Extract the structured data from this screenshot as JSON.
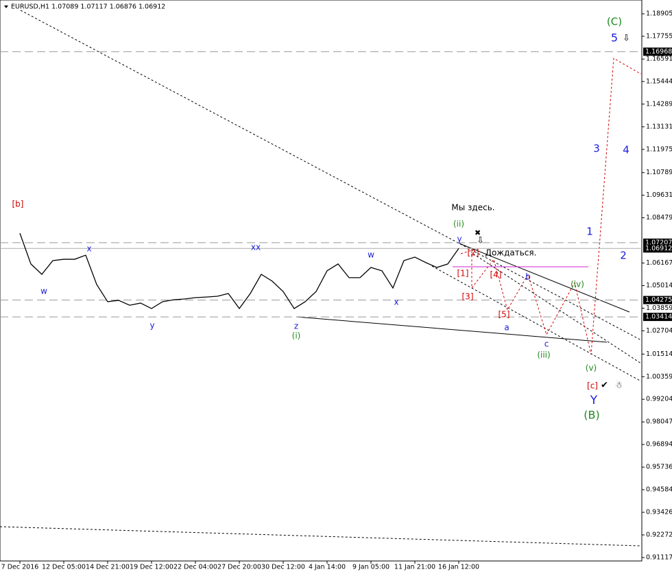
{
  "chart_data": {
    "type": "line",
    "title": "EURUSD,H1  1.07089 1.07117 1.06876 1.06912",
    "categories": [
      "7 Dec 2016",
      null,
      null,
      null,
      "12 Dec 05:00",
      null,
      null,
      null,
      "14 Dec 21:00",
      null,
      null,
      null,
      "19 Dec 12:00",
      null,
      null,
      null,
      "22 Dec 04:00",
      null,
      null,
      null,
      "27 Dec 20:00",
      null,
      null,
      null,
      "30 Dec 12:00",
      null,
      null,
      null,
      "4 Jan 14:00",
      null,
      null,
      null,
      "9 Jan 05:00",
      null,
      null,
      null,
      "11 Jan 21:00",
      null,
      null,
      null,
      "16 Jan 12:00"
    ],
    "series": [
      {
        "name": "EURUSD",
        "color": "#000000",
        "values": [
          1.0769,
          1.0612,
          1.0559,
          1.0629,
          1.0636,
          1.0636,
          1.0657,
          1.0507,
          1.0419,
          1.0426,
          1.0401,
          1.0412,
          1.0384,
          1.0419,
          1.0429,
          1.0433,
          1.044,
          1.0443,
          1.0447,
          1.0461,
          1.0384,
          1.0461,
          1.0559,
          1.0524,
          1.0471,
          1.0384,
          1.0419,
          1.0471,
          1.0577,
          1.0612,
          1.0542,
          1.0542,
          1.0594,
          1.0577,
          1.0489,
          1.0629,
          1.0647,
          1.0619,
          1.0594,
          1.0612,
          1.06912
        ]
      }
    ],
    "ylim": [
      0.9094,
      1.1961
    ],
    "yticks": [
      1.18905,
      1.17755,
      1.16591,
      1.15444,
      1.14289,
      1.13131,
      1.11975,
      1.10789,
      1.09631,
      1.08479,
      1.06167,
      1.05014,
      1.03859,
      1.02704,
      1.01514,
      1.00359,
      0.99204,
      0.98047,
      0.96894,
      0.95736,
      0.94584,
      0.93426,
      0.92272,
      0.91117
    ],
    "levels": [
      1.16968,
      1.07207,
      1.04275,
      1.03414
    ],
    "last_price": 1.06912,
    "annotations": [
      {
        "text": "[b]",
        "color": "#d00000"
      },
      {
        "text": "x",
        "color": "#1a1adc"
      },
      {
        "text": "w",
        "color": "#1a1adc"
      },
      {
        "text": "y",
        "color": "#1a1adc"
      },
      {
        "text": "xx",
        "color": "#1a1adc"
      },
      {
        "text": "z",
        "color": "#1a1adc"
      },
      {
        "text": "(i)",
        "color": "#1f8a1f"
      },
      {
        "text": "w",
        "color": "#1a1adc"
      },
      {
        "text": "x",
        "color": "#1a1adc"
      },
      {
        "text": "y",
        "color": "#1a1adc"
      },
      {
        "text": "(ii)",
        "color": "#1f8a1f"
      },
      {
        "text": "Мы здесь.",
        "color": "#000000"
      },
      {
        "text": "Дождаться.",
        "color": "#000000"
      },
      {
        "text": "[2]",
        "color": "#d00000"
      },
      {
        "text": "[1]",
        "color": "#d00000"
      },
      {
        "text": "[3]",
        "color": "#d00000"
      },
      {
        "text": "[4]",
        "color": "#d00000"
      },
      {
        "text": "[5]",
        "color": "#d00000"
      },
      {
        "text": "b",
        "color": "#1a1adc"
      },
      {
        "text": "a",
        "color": "#1a1adc"
      },
      {
        "text": "c",
        "color": "#1a1adc"
      },
      {
        "text": "(iii)",
        "color": "#1f8a1f"
      },
      {
        "text": "(iv)",
        "color": "#1f8a1f"
      },
      {
        "text": "(v)",
        "color": "#1f8a1f"
      },
      {
        "text": "[c]",
        "color": "#d00000"
      },
      {
        "text": "Y",
        "color": "#1a1adc"
      },
      {
        "text": "(B)",
        "color": "#1f8a1f"
      },
      {
        "text": "(C)",
        "color": "#1f8a1f"
      },
      {
        "text": "5",
        "color": "#1a1adc"
      },
      {
        "text": "3",
        "color": "#1a1adc"
      },
      {
        "text": "4",
        "color": "#1a1adc"
      },
      {
        "text": "1",
        "color": "#1a1adc"
      },
      {
        "text": "2",
        "color": "#1a1adc"
      }
    ]
  }
}
